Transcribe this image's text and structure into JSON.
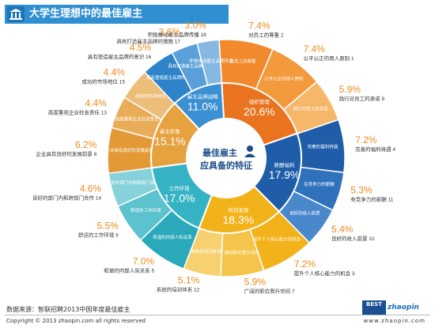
{
  "header": {
    "title": "大学生理想中的最佳雇主",
    "logo_icon": "building-icon"
  },
  "footer": {
    "source": "数据来源：智联招聘2013中国年度最佳雇主",
    "copyright": "Copyright © 2013 zhaopin.com all rights reserved",
    "url": "www.zhaopin.com",
    "brand_best": "BEST",
    "brand_name": "zhaopin"
  },
  "chart_data": {
    "type": "pie",
    "title": "最佳雇主应具备的特征",
    "center_title_line1": "最佳雇主",
    "center_title_line2": "应具备的特征",
    "inner": [
      {
        "name": "组织管理",
        "value": 20.6,
        "label": "20.6%",
        "color": "#e9731e"
      },
      {
        "name": "薪酬福利",
        "value": 17.9,
        "label": "17.9%",
        "color": "#1f5da8"
      },
      {
        "name": "培训发展",
        "value": 18.3,
        "label": "18.3%",
        "color": "#f2b21a"
      },
      {
        "name": "工作环境",
        "value": 17.0,
        "label": "17.0%",
        "color": "#35b3c4"
      },
      {
        "name": "雇主形象",
        "value": 15.1,
        "label": "15.1%",
        "color": "#e7a240"
      },
      {
        "name": "雇主品牌战略",
        "value": 11.0,
        "label": "11.0%",
        "color": "#3b8fd3"
      }
    ],
    "outer": [
      {
        "num": "2",
        "name": "对员工的尊重",
        "value": 7.4,
        "label": "7.4%",
        "color": "#f08a2c"
      },
      {
        "num": "1",
        "name": "公平公正的用人原则",
        "value": 7.4,
        "label": "7.4%",
        "color": "#f39a3c"
      },
      {
        "num": "8",
        "name": "践行对员工的承诺",
        "value": 5.9,
        "label": "5.9%",
        "color": "#f7b76a"
      },
      {
        "num": "4",
        "name": "完善的福利待遇",
        "value": 7.2,
        "label": "7.2%",
        "color": "#1f5da8"
      },
      {
        "num": "11",
        "name": "有竞争力的薪酬",
        "value": 5.3,
        "label": "5.3%",
        "color": "#2f72bb"
      },
      {
        "num": "10",
        "name": "良好的收入前景",
        "value": 5.4,
        "label": "5.4%",
        "color": "#4a88cc"
      },
      {
        "num": "3",
        "name": "提升个人核心能力的机会",
        "value": 7.2,
        "label": "7.2%",
        "color": "#f2b21a"
      },
      {
        "num": "7",
        "name": "广阔的职位晋升空间",
        "value": 5.9,
        "label": "5.9%",
        "color": "#f5c44a"
      },
      {
        "num": "12",
        "name": "系统的培训体系",
        "value": 5.1,
        "label": "5.1%",
        "color": "#f7d170"
      },
      {
        "num": "5",
        "name": "和谐的内部人际关系",
        "value": 7.0,
        "label": "7.0%",
        "color": "#2aa9ba"
      },
      {
        "num": "9",
        "name": "舒适的工作环境",
        "value": 5.5,
        "label": "5.5%",
        "color": "#5cc2ce"
      },
      {
        "num": "14",
        "name": "良好的部门内和跨部门合作",
        "value": 4.6,
        "label": "4.6%",
        "color": "#86d2da"
      },
      {
        "num": "6",
        "name": "企业具有良好的发展前景",
        "value": 6.2,
        "label": "6.2%",
        "color": "#e39a36"
      },
      {
        "num": "13",
        "name": "高度重视企业社会责任",
        "value": 4.4,
        "label": "4.4%",
        "color": "#e9ad5a"
      },
      {
        "num": "15",
        "name": "成功的市场地位",
        "value": 4.4,
        "label": "4.4%",
        "color": "#edbe7a"
      },
      {
        "num": "16",
        "name": "具有塑造雇主品牌的意识",
        "value": 4.5,
        "label": "4.5%",
        "color": "#2f83c9"
      },
      {
        "num": "17",
        "name": "具有打造雇主品牌的措施",
        "value": 3.6,
        "label": "3.6%",
        "color": "#5a9fd8"
      },
      {
        "num": "18",
        "name": "积极推动雇主品牌传播",
        "value": 3.0,
        "label": "3.0%",
        "color": "#86b9e2"
      }
    ]
  }
}
